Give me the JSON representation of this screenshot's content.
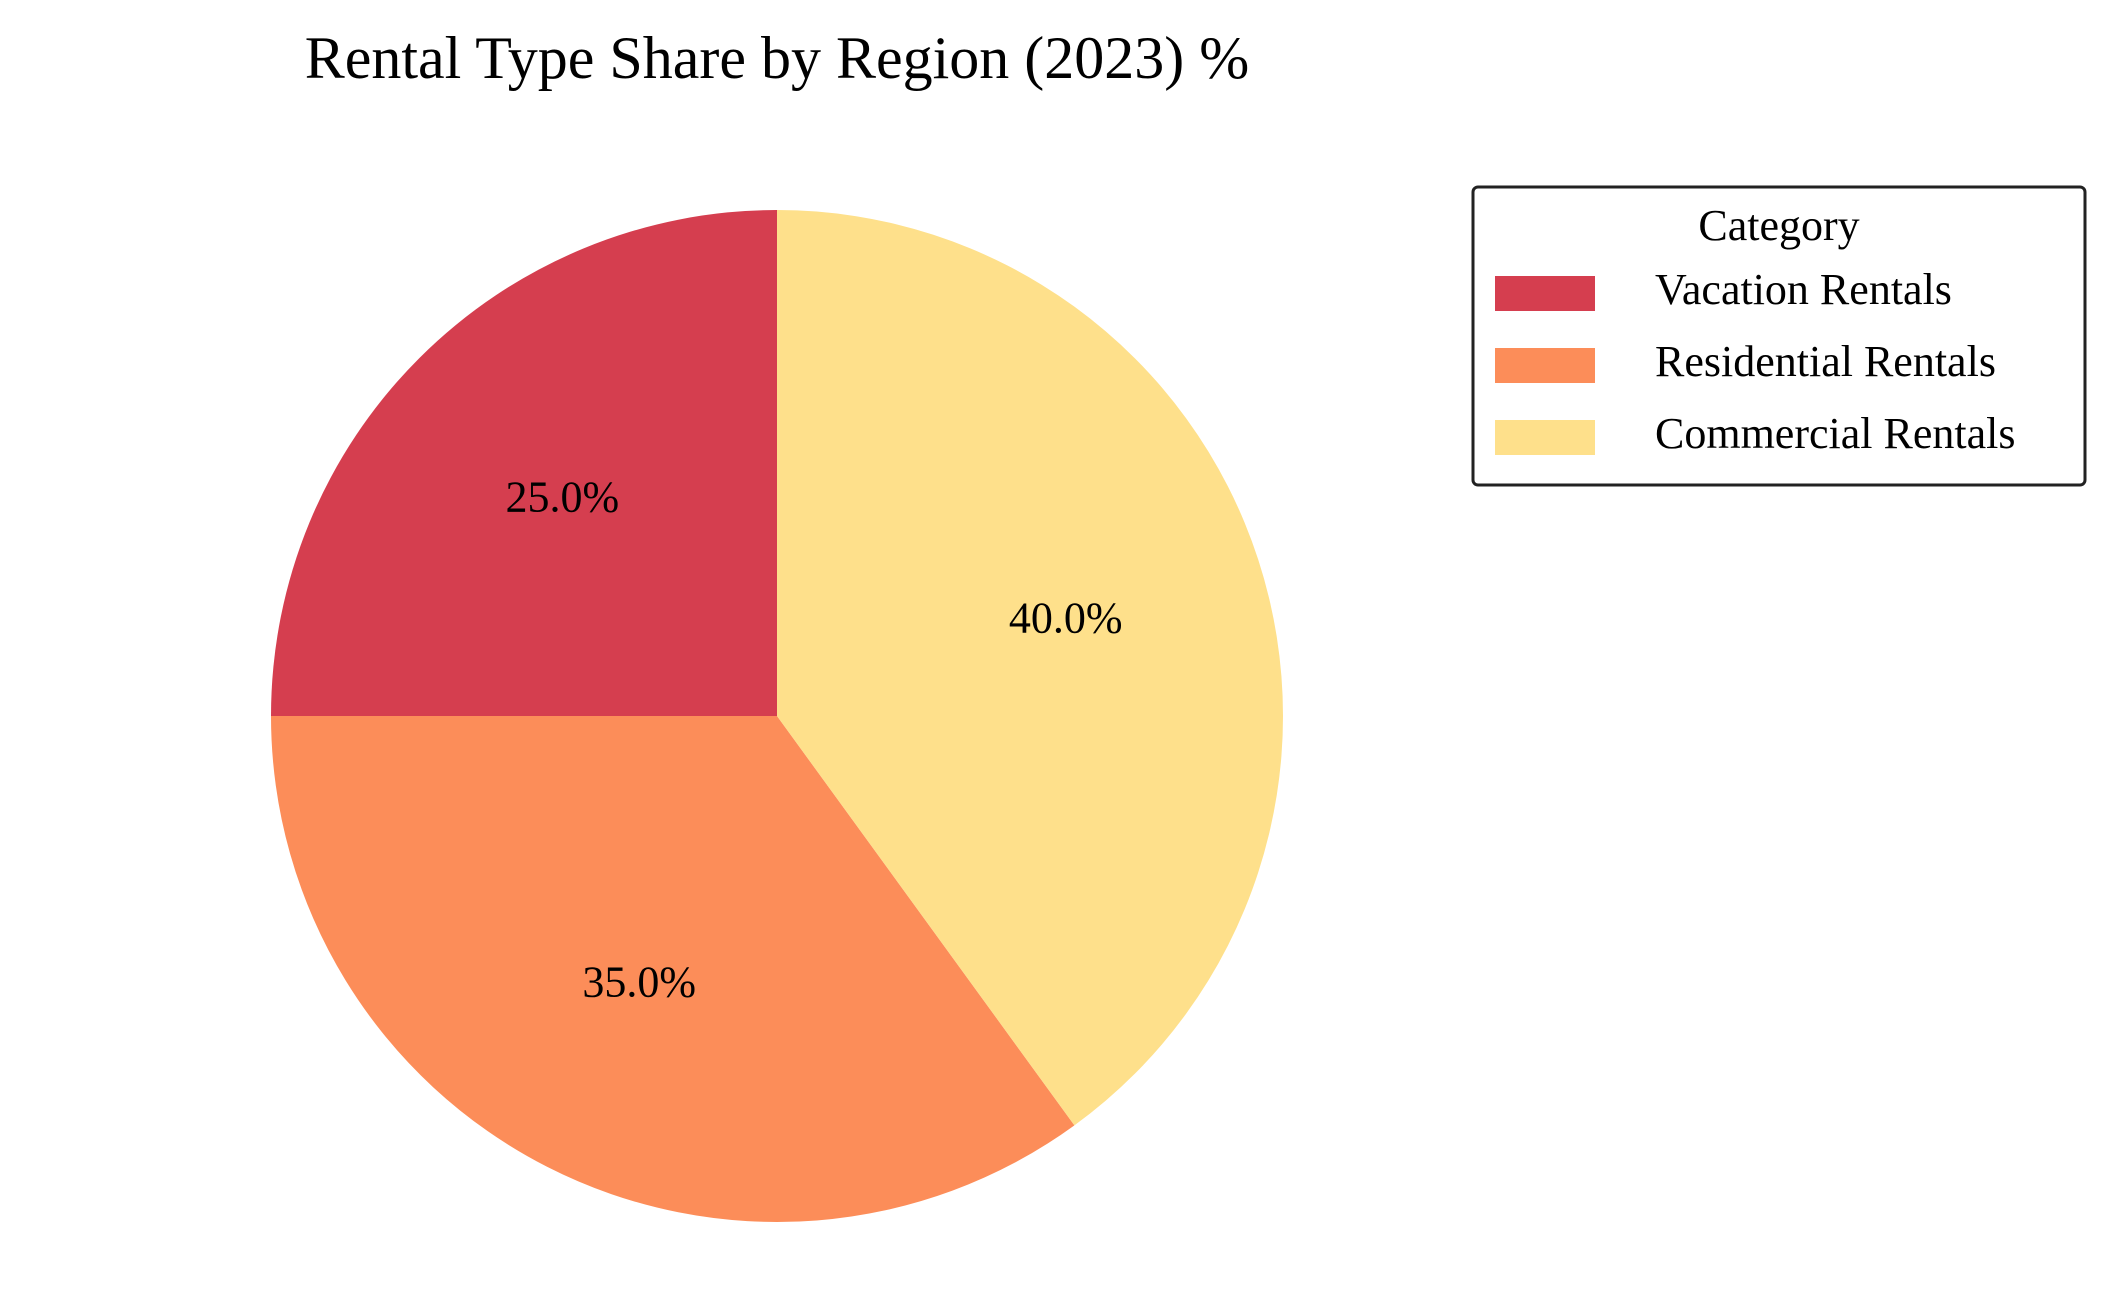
{
  "chart_data": {
    "type": "pie",
    "title": "Rental Type Share by Region (2023) %",
    "categories": [
      "Vacation Rentals",
      "Residential Rentals",
      "Commercial Rentals"
    ],
    "values": [
      25.0,
      35.0,
      40.0
    ],
    "value_labels": [
      "25.0%",
      "35.0%",
      "40.0%"
    ],
    "colors": [
      "#d53e4f",
      "#fc8d59",
      "#fee08b"
    ],
    "start_angle": "top (90°)",
    "direction": "counterclockwise",
    "legend": {
      "title": "Category",
      "placement": "right"
    }
  }
}
